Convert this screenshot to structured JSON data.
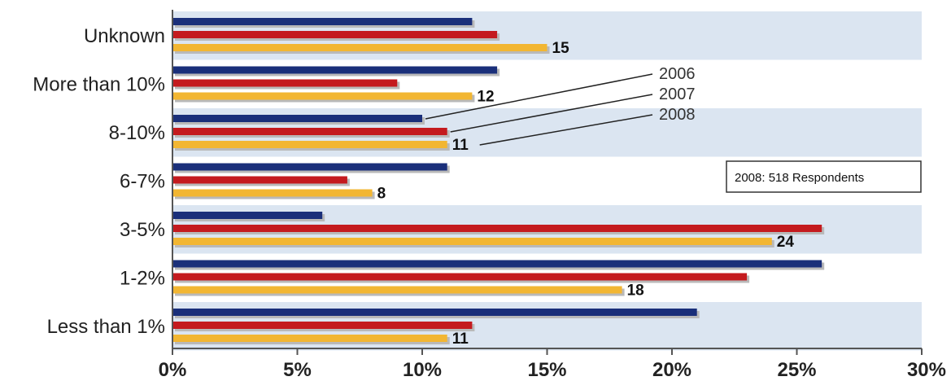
{
  "chart_data": {
    "type": "bar",
    "orientation": "horizontal",
    "categories": [
      "Unknown",
      "More than 10%",
      "8-10%",
      "6-7%",
      "3-5%",
      "1-2%",
      "Less than 1%"
    ],
    "series": [
      {
        "name": "2006",
        "color": "#1a2f7a",
        "values": [
          12,
          13,
          10,
          11,
          6,
          26,
          21
        ]
      },
      {
        "name": "2007",
        "color": "#c41a1e",
        "values": [
          13,
          9,
          11,
          7,
          26,
          23,
          12
        ]
      },
      {
        "name": "2008",
        "color": "#f2b632",
        "values": [
          15,
          12,
          11,
          8,
          24,
          18,
          11
        ]
      }
    ],
    "data_labels": {
      "series": "2008",
      "values": [
        "15",
        "12",
        "11",
        "8",
        "24",
        "18",
        "11"
      ]
    },
    "xlim": [
      0,
      30
    ],
    "xticks": [
      "0%",
      "5%",
      "10%",
      "15%",
      "20%",
      "25%",
      "30%"
    ],
    "band_color": "#dbe5f1",
    "annotation": "2008: 518 Respondents",
    "legend": "callouts"
  }
}
